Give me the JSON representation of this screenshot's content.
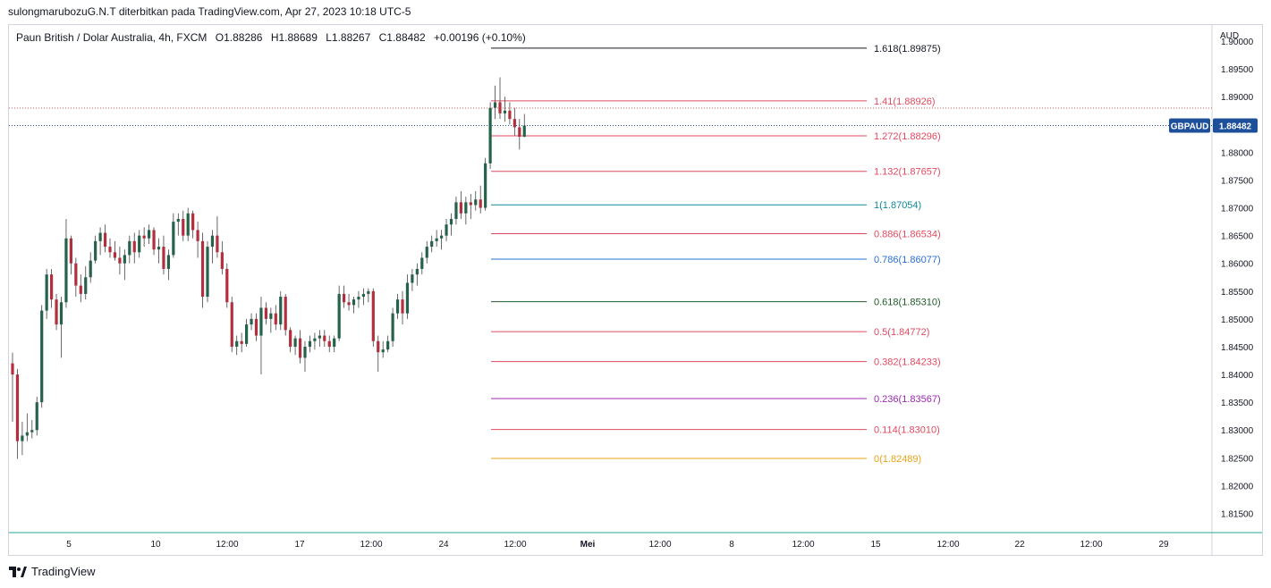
{
  "header": {
    "attribution": "sulongmarubozuG.N.T diterbitkan pada TradingView.com, Apr 27, 2023 10:18 UTC-5"
  },
  "footer": {
    "brand": "TradingView",
    "logo_icon": "tradingview-logo-icon"
  },
  "colors": {
    "up_candle": "#26624a",
    "down_candle": "#b22f3d",
    "last_price_line": "#1e4f9a",
    "last_price_badge": "#1e4f9a",
    "high_line": "#e05050"
  },
  "chart_data": {
    "type": "candlestick",
    "symbol_line": {
      "name": "Paun British / Dolar Australia, 4h, FXCM",
      "open": "O1.88286",
      "high": "H1.88689",
      "low": "L1.88267",
      "close": "C1.88482",
      "change": "+0.00196 (+0.10%)"
    },
    "currency": "AUD",
    "y_ticks": [
      "1.90000",
      "1.89500",
      "1.89000",
      "1.88500",
      "1.88000",
      "1.87500",
      "1.87000",
      "1.86500",
      "1.86000",
      "1.85500",
      "1.85000",
      "1.84500",
      "1.84000",
      "1.83500",
      "1.83000",
      "1.82500",
      "1.82000",
      "1.81500"
    ],
    "x_ticks": [
      "5",
      "10",
      "12:00",
      "17",
      "12:00",
      "24",
      "12:00",
      "Mei",
      "12:00",
      "8",
      "12:00",
      "15",
      "12:00",
      "22",
      "12:00",
      "29"
    ],
    "ylim": [
      1.8125,
      1.9013
    ],
    "last_price": {
      "label": "GBPAUD",
      "value": "1.88482"
    },
    "fibonacci": [
      {
        "label": "1.618(1.89875)",
        "price": 1.89875,
        "color": "#131722"
      },
      {
        "label": "1.41(1.88926)",
        "price": 1.88926,
        "color": "#e04a5f"
      },
      {
        "label": "1.272(1.88296)",
        "price": 1.88296,
        "color": "#e04a5f"
      },
      {
        "label": "1.132(1.87657)",
        "price": 1.87657,
        "color": "#e04a5f"
      },
      {
        "label": "1(1.87054)",
        "price": 1.87054,
        "color": "#0e8a9c"
      },
      {
        "label": "0.886(1.86534)",
        "price": 1.86534,
        "color": "#e04a5f"
      },
      {
        "label": "0.786(1.86077)",
        "price": 1.86077,
        "color": "#2a6fd6"
      },
      {
        "label": "0.618(1.85310)",
        "price": 1.8531,
        "color": "#1f5c2a"
      },
      {
        "label": "0.5(1.84772)",
        "price": 1.84772,
        "color": "#e04a5f"
      },
      {
        "label": "0.382(1.84233)",
        "price": 1.84233,
        "color": "#e04a5f"
      },
      {
        "label": "0.236(1.83567)",
        "price": 1.83567,
        "color": "#9c27b0"
      },
      {
        "label": "0.114(1.83010)",
        "price": 1.8301,
        "color": "#e04a5f"
      },
      {
        "label": "0(1.82489)",
        "price": 1.82489,
        "color": "#e8a317"
      }
    ],
    "candles": [
      [
        1.842,
        1.8439,
        1.8315,
        1.84
      ],
      [
        1.84,
        1.841,
        1.8248,
        1.828
      ],
      [
        1.828,
        1.8315,
        1.8255,
        1.829
      ],
      [
        1.829,
        1.833,
        1.828,
        1.8296
      ],
      [
        1.8296,
        1.8318,
        1.8285,
        1.83
      ],
      [
        1.83,
        1.836,
        1.829,
        1.835
      ],
      [
        1.835,
        1.8525,
        1.834,
        1.8515
      ],
      [
        1.8515,
        1.859,
        1.85,
        1.858
      ],
      [
        1.858,
        1.859,
        1.852,
        1.8535
      ],
      [
        1.8535,
        1.8545,
        1.848,
        1.849
      ],
      [
        1.849,
        1.854,
        1.843,
        1.853
      ],
      [
        1.853,
        1.868,
        1.852,
        1.8645
      ],
      [
        1.8645,
        1.865,
        1.858,
        1.86
      ],
      [
        1.86,
        1.861,
        1.854,
        1.856
      ],
      [
        1.856,
        1.858,
        1.853,
        1.8545
      ],
      [
        1.8545,
        1.8595,
        1.8535,
        1.8575
      ],
      [
        1.8575,
        1.862,
        1.8565,
        1.8605
      ],
      [
        1.8605,
        1.865,
        1.86,
        1.864
      ],
      [
        1.864,
        1.8665,
        1.8615,
        1.8655
      ],
      [
        1.8655,
        1.867,
        1.862,
        1.863
      ],
      [
        1.863,
        1.8645,
        1.861,
        1.862
      ],
      [
        1.862,
        1.864,
        1.8605,
        1.861
      ],
      [
        1.861,
        1.863,
        1.858,
        1.86
      ],
      [
        1.86,
        1.8625,
        1.857,
        1.8615
      ],
      [
        1.8615,
        1.865,
        1.86,
        1.864
      ],
      [
        1.864,
        1.8655,
        1.86,
        1.862
      ],
      [
        1.862,
        1.866,
        1.861,
        1.865
      ],
      [
        1.865,
        1.8665,
        1.863,
        1.8645
      ],
      [
        1.8645,
        1.867,
        1.8635,
        1.866
      ],
      [
        1.866,
        1.8665,
        1.8615,
        1.8625
      ],
      [
        1.8625,
        1.8645,
        1.86,
        1.863
      ],
      [
        1.863,
        1.865,
        1.858,
        1.859
      ],
      [
        1.859,
        1.8625,
        1.857,
        1.8615
      ],
      [
        1.8615,
        1.869,
        1.861,
        1.8675
      ],
      [
        1.8675,
        1.869,
        1.865,
        1.868
      ],
      [
        1.868,
        1.8695,
        1.864,
        1.865
      ],
      [
        1.865,
        1.87,
        1.864,
        1.869
      ],
      [
        1.869,
        1.8695,
        1.8645,
        1.866
      ],
      [
        1.866,
        1.8675,
        1.861,
        1.864
      ],
      [
        1.864,
        1.8655,
        1.852,
        1.854
      ],
      [
        1.854,
        1.864,
        1.853,
        1.863
      ],
      [
        1.863,
        1.866,
        1.86,
        1.865
      ],
      [
        1.865,
        1.8685,
        1.861,
        1.862
      ],
      [
        1.862,
        1.864,
        1.858,
        1.859
      ],
      [
        1.859,
        1.86,
        1.852,
        1.853
      ],
      [
        1.853,
        1.854,
        1.844,
        1.845
      ],
      [
        1.845,
        1.847,
        1.8435,
        1.846
      ],
      [
        1.846,
        1.8475,
        1.844,
        1.8455
      ],
      [
        1.8455,
        1.85,
        1.845,
        1.849
      ],
      [
        1.849,
        1.851,
        1.848,
        1.85
      ],
      [
        1.85,
        1.851,
        1.846,
        1.847
      ],
      [
        1.847,
        1.854,
        1.84,
        1.852
      ],
      [
        1.852,
        1.853,
        1.849,
        1.85
      ],
      [
        1.85,
        1.852,
        1.8475,
        1.851
      ],
      [
        1.851,
        1.8525,
        1.848,
        1.849
      ],
      [
        1.849,
        1.855,
        1.848,
        1.854
      ],
      [
        1.854,
        1.8545,
        1.847,
        1.848
      ],
      [
        1.848,
        1.8485,
        1.844,
        1.845
      ],
      [
        1.845,
        1.847,
        1.8435,
        1.8465
      ],
      [
        1.8465,
        1.848,
        1.842,
        1.843
      ],
      [
        1.843,
        1.846,
        1.8405,
        1.845
      ],
      [
        1.845,
        1.847,
        1.844,
        1.846
      ],
      [
        1.846,
        1.8475,
        1.8445,
        1.8465
      ],
      [
        1.8465,
        1.848,
        1.845,
        1.847
      ],
      [
        1.847,
        1.848,
        1.845,
        1.846
      ],
      [
        1.846,
        1.847,
        1.844,
        1.845
      ],
      [
        1.845,
        1.847,
        1.844,
        1.8465
      ],
      [
        1.8465,
        1.856,
        1.846,
        1.8545
      ],
      [
        1.8545,
        1.856,
        1.852,
        1.853
      ],
      [
        1.853,
        1.8545,
        1.8515,
        1.8525
      ],
      [
        1.8525,
        1.854,
        1.851,
        1.8535
      ],
      [
        1.8535,
        1.855,
        1.852,
        1.854
      ],
      [
        1.854,
        1.8555,
        1.8525,
        1.8545
      ],
      [
        1.8545,
        1.8555,
        1.853,
        1.855
      ],
      [
        1.855,
        1.8555,
        1.845,
        1.846
      ],
      [
        1.846,
        1.847,
        1.8405,
        1.844
      ],
      [
        1.844,
        1.846,
        1.843,
        1.8445
      ],
      [
        1.8445,
        1.847,
        1.844,
        1.846
      ],
      [
        1.846,
        1.852,
        1.845,
        1.851
      ],
      [
        1.851,
        1.8545,
        1.85,
        1.8535
      ],
      [
        1.8535,
        1.855,
        1.849,
        1.851
      ],
      [
        1.851,
        1.858,
        1.85,
        1.8565
      ],
      [
        1.8565,
        1.859,
        1.855,
        1.858
      ],
      [
        1.858,
        1.86,
        1.856,
        1.859
      ],
      [
        1.859,
        1.862,
        1.858,
        1.861
      ],
      [
        1.861,
        1.864,
        1.86,
        1.863
      ],
      [
        1.863,
        1.865,
        1.862,
        1.864
      ],
      [
        1.864,
        1.866,
        1.863,
        1.8645
      ],
      [
        1.8645,
        1.866,
        1.8625,
        1.865
      ],
      [
        1.865,
        1.868,
        1.864,
        1.867
      ],
      [
        1.867,
        1.869,
        1.865,
        1.868
      ],
      [
        1.868,
        1.872,
        1.867,
        1.871
      ],
      [
        1.871,
        1.873,
        1.868,
        1.869
      ],
      [
        1.869,
        1.872,
        1.867,
        1.871
      ],
      [
        1.871,
        1.8725,
        1.868,
        1.8705
      ],
      [
        1.8705,
        1.873,
        1.8695,
        1.8715
      ],
      [
        1.8715,
        1.874,
        1.869,
        1.87
      ],
      [
        1.87,
        1.879,
        1.8695,
        1.878
      ],
      [
        1.878,
        1.889,
        1.877,
        1.888
      ],
      [
        1.888,
        1.892,
        1.886,
        1.889
      ],
      [
        1.889,
        1.8935,
        1.886,
        1.887
      ],
      [
        1.887,
        1.89,
        1.8855,
        1.8875
      ],
      [
        1.8875,
        1.889,
        1.885,
        1.886
      ],
      [
        1.886,
        1.888,
        1.883,
        1.8845
      ],
      [
        1.8845,
        1.886,
        1.8805,
        1.8828
      ],
      [
        1.8828,
        1.8869,
        1.8827,
        1.8848
      ]
    ]
  }
}
